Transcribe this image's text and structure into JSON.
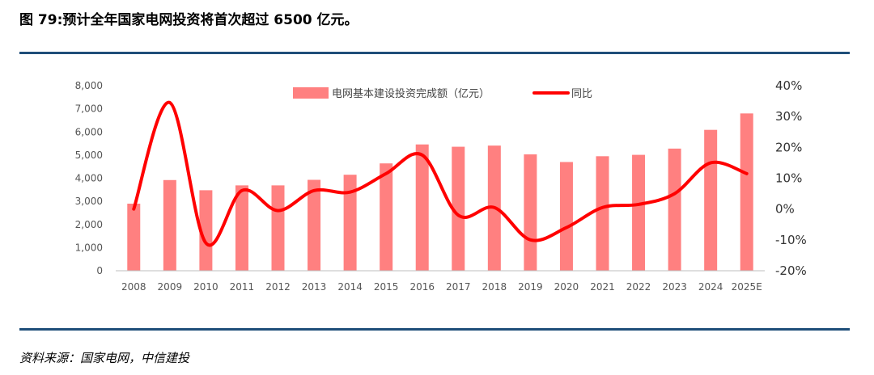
{
  "header": {
    "title": "图 79:预计全年国家电网投资将首次超过 6500 亿元。"
  },
  "footer": {
    "source": "资料来源：国家电网，中信建投"
  },
  "colors": {
    "bar": "#ff8080",
    "line": "#ff0000",
    "rule": "#1f4e79"
  },
  "chart_data": {
    "type": "bar",
    "categories": [
      "2008",
      "2009",
      "2010",
      "2011",
      "2012",
      "2013",
      "2014",
      "2015",
      "2016",
      "2017",
      "2018",
      "2019",
      "2020",
      "2021",
      "2022",
      "2023",
      "2024",
      "2025E"
    ],
    "series": [
      {
        "name": "电网基本建设投资完成额（亿元）",
        "type": "bar",
        "axis": "left",
        "values": [
          2900,
          3920,
          3480,
          3690,
          3690,
          3930,
          4150,
          4640,
          5460,
          5360,
          5410,
          5030,
          4700,
          4950,
          5010,
          5280,
          6090,
          6800
        ]
      },
      {
        "name": "同比",
        "type": "line",
        "axis": "right",
        "unit": "%",
        "values": [
          0,
          34.5,
          -11,
          6,
          -0.5,
          6,
          5.5,
          11.5,
          17.5,
          -2,
          0.5,
          -10,
          -6,
          0.5,
          1.5,
          5,
          15,
          11.5
        ]
      }
    ],
    "y_left": {
      "min": 0,
      "max": 8000,
      "ticks": [
        "0",
        "1,000",
        "2,000",
        "3,000",
        "4,000",
        "5,000",
        "6,000",
        "7,000",
        "8,000"
      ]
    },
    "y_right": {
      "min": -20,
      "max": 40,
      "ticks": [
        "-20%",
        "-10%",
        "0%",
        "10%",
        "20%",
        "30%",
        "40%"
      ]
    },
    "legend_position": "top",
    "grid": false
  }
}
